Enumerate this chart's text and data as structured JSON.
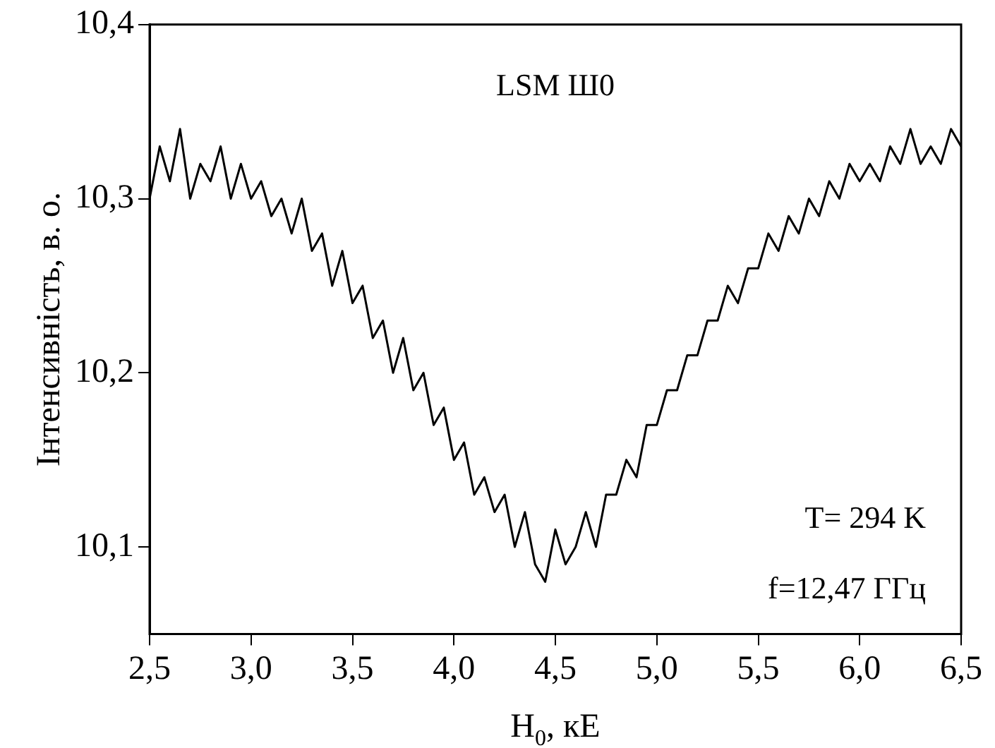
{
  "chart_data": {
    "type": "line",
    "xlabel": "H$_{0}$, кЕ",
    "ylabel": "Інтенсивність, в. о.",
    "annotations": [
      "LSM Ш0",
      "T= 294 K",
      "f=12,47 ГГц"
    ],
    "x": [
      2.5,
      2.55,
      2.6,
      2.65,
      2.7,
      2.75,
      2.8,
      2.85,
      2.9,
      2.95,
      3.0,
      3.05,
      3.1,
      3.15,
      3.2,
      3.25,
      3.3,
      3.35,
      3.4,
      3.45,
      3.5,
      3.55,
      3.6,
      3.65,
      3.7,
      3.75,
      3.8,
      3.85,
      3.9,
      3.95,
      4.0,
      4.05,
      4.1,
      4.15,
      4.2,
      4.25,
      4.3,
      4.35,
      4.4,
      4.45,
      4.5,
      4.55,
      4.6,
      4.65,
      4.7,
      4.75,
      4.8,
      4.85,
      4.9,
      4.95,
      5.0,
      5.05,
      5.1,
      5.15,
      5.2,
      5.25,
      5.3,
      5.35,
      5.4,
      5.45,
      5.5,
      5.55,
      5.6,
      5.65,
      5.7,
      5.75,
      5.8,
      5.85,
      5.9,
      5.95,
      6.0,
      6.05,
      6.1,
      6.15,
      6.2,
      6.25,
      6.3,
      6.35,
      6.4,
      6.45,
      6.5
    ],
    "series": [
      {
        "color": "#000000",
        "values": [
          10.3,
          10.33,
          10.31,
          10.34,
          10.3,
          10.32,
          10.31,
          10.33,
          10.3,
          10.32,
          10.3,
          10.31,
          10.29,
          10.3,
          10.28,
          10.3,
          10.27,
          10.28,
          10.25,
          10.27,
          10.24,
          10.25,
          10.22,
          10.23,
          10.2,
          10.22,
          10.19,
          10.2,
          10.17,
          10.18,
          10.15,
          10.16,
          10.13,
          10.14,
          10.12,
          10.13,
          10.1,
          10.12,
          10.09,
          10.08,
          10.11,
          10.09,
          10.1,
          10.12,
          10.1,
          10.13,
          10.13,
          10.15,
          10.14,
          10.17,
          10.17,
          10.19,
          10.19,
          10.21,
          10.21,
          10.23,
          10.23,
          10.25,
          10.24,
          10.26,
          10.26,
          10.28,
          10.27,
          10.29,
          10.28,
          10.3,
          10.29,
          10.31,
          10.3,
          10.32,
          10.31,
          10.32,
          10.31,
          10.33,
          10.32,
          10.34,
          10.32,
          10.33,
          10.32,
          10.34,
          10.33
        ]
      }
    ],
    "xlim": [
      2.5,
      6.5
    ],
    "ylim": [
      10.05,
      10.4
    ],
    "xticks": [
      {
        "value": 2.5,
        "label": "2,5"
      },
      {
        "value": 3.0,
        "label": "3,0"
      },
      {
        "value": 3.5,
        "label": "3,5"
      },
      {
        "value": 4.0,
        "label": "4,0"
      },
      {
        "value": 4.5,
        "label": "4,5"
      },
      {
        "value": 5.0,
        "label": "5,0"
      },
      {
        "value": 5.5,
        "label": "5,5"
      },
      {
        "value": 6.0,
        "label": "6,0"
      },
      {
        "value": 6.5,
        "label": "6,5"
      }
    ],
    "yticks": [
      {
        "value": 10.1,
        "label": "10,1"
      },
      {
        "value": 10.2,
        "label": "10,2"
      },
      {
        "value": 10.3,
        "label": "10,3"
      },
      {
        "value": 10.4,
        "label": "10,4"
      }
    ],
    "grid": false,
    "legend": false,
    "marker": "none",
    "line_style": "solid"
  }
}
